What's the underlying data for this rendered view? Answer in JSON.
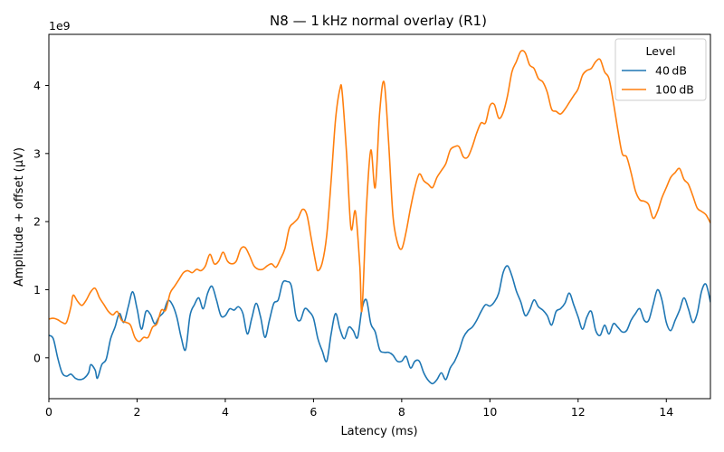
{
  "chart_data": {
    "type": "line",
    "title": "N8 — 1 kHz normal overlay (R1)",
    "xlabel": "Latency (ms)",
    "ylabel": "Amplitude + offset (µV)",
    "y_multiplier_label": "1e9",
    "xlim": [
      0,
      15
    ],
    "ylim": [
      -0.6,
      4.75
    ],
    "x_ticks": [
      0,
      2,
      4,
      6,
      8,
      10,
      12,
      14
    ],
    "x_tick_labels": [
      "0",
      "2",
      "4",
      "6",
      "8",
      "10",
      "12",
      "14"
    ],
    "y_ticks": [
      0,
      1,
      2,
      3,
      4
    ],
    "y_tick_labels": [
      "0",
      "1",
      "2",
      "3",
      "4"
    ],
    "grid": false,
    "legend": {
      "title": "Level",
      "position": "top-right"
    },
    "series": [
      {
        "name": "40 dB",
        "color": "#1f77b4",
        "points": [
          [
            0.0,
            0.33
          ],
          [
            0.1,
            0.28
          ],
          [
            0.2,
            0.0
          ],
          [
            0.3,
            -0.22
          ],
          [
            0.4,
            -0.27
          ],
          [
            0.5,
            -0.24
          ],
          [
            0.6,
            -0.3
          ],
          [
            0.7,
            -0.32
          ],
          [
            0.8,
            -0.3
          ],
          [
            0.9,
            -0.22
          ],
          [
            0.95,
            -0.1
          ],
          [
            1.05,
            -0.18
          ],
          [
            1.1,
            -0.3
          ],
          [
            1.2,
            -0.1
          ],
          [
            1.3,
            -0.02
          ],
          [
            1.4,
            0.28
          ],
          [
            1.5,
            0.45
          ],
          [
            1.6,
            0.65
          ],
          [
            1.7,
            0.52
          ],
          [
            1.8,
            0.75
          ],
          [
            1.9,
            0.97
          ],
          [
            2.0,
            0.72
          ],
          [
            2.1,
            0.42
          ],
          [
            2.2,
            0.68
          ],
          [
            2.3,
            0.64
          ],
          [
            2.4,
            0.5
          ],
          [
            2.5,
            0.6
          ],
          [
            2.6,
            0.67
          ],
          [
            2.7,
            0.84
          ],
          [
            2.8,
            0.78
          ],
          [
            2.9,
            0.6
          ],
          [
            3.0,
            0.3
          ],
          [
            3.1,
            0.12
          ],
          [
            3.2,
            0.62
          ],
          [
            3.3,
            0.78
          ],
          [
            3.4,
            0.88
          ],
          [
            3.5,
            0.72
          ],
          [
            3.6,
            0.95
          ],
          [
            3.7,
            1.05
          ],
          [
            3.8,
            0.85
          ],
          [
            3.9,
            0.62
          ],
          [
            4.0,
            0.62
          ],
          [
            4.1,
            0.72
          ],
          [
            4.2,
            0.7
          ],
          [
            4.3,
            0.75
          ],
          [
            4.4,
            0.65
          ],
          [
            4.5,
            0.35
          ],
          [
            4.6,
            0.58
          ],
          [
            4.7,
            0.8
          ],
          [
            4.8,
            0.6
          ],
          [
            4.9,
            0.3
          ],
          [
            5.0,
            0.55
          ],
          [
            5.1,
            0.8
          ],
          [
            5.2,
            0.85
          ],
          [
            5.3,
            1.1
          ],
          [
            5.4,
            1.12
          ],
          [
            5.5,
            1.05
          ],
          [
            5.6,
            0.62
          ],
          [
            5.7,
            0.55
          ],
          [
            5.8,
            0.72
          ],
          [
            5.9,
            0.68
          ],
          [
            6.0,
            0.58
          ],
          [
            6.1,
            0.28
          ],
          [
            6.2,
            0.1
          ],
          [
            6.3,
            -0.05
          ],
          [
            6.4,
            0.35
          ],
          [
            6.5,
            0.65
          ],
          [
            6.6,
            0.42
          ],
          [
            6.7,
            0.28
          ],
          [
            6.8,
            0.45
          ],
          [
            6.9,
            0.4
          ],
          [
            7.0,
            0.3
          ],
          [
            7.1,
            0.72
          ],
          [
            7.2,
            0.85
          ],
          [
            7.3,
            0.5
          ],
          [
            7.4,
            0.38
          ],
          [
            7.5,
            0.12
          ],
          [
            7.6,
            0.08
          ],
          [
            7.7,
            0.08
          ],
          [
            7.8,
            0.04
          ],
          [
            7.9,
            -0.05
          ],
          [
            8.0,
            -0.05
          ],
          [
            8.1,
            0.02
          ],
          [
            8.2,
            -0.15
          ],
          [
            8.3,
            -0.05
          ],
          [
            8.4,
            -0.05
          ],
          [
            8.5,
            -0.22
          ],
          [
            8.6,
            -0.33
          ],
          [
            8.7,
            -0.38
          ],
          [
            8.8,
            -0.32
          ],
          [
            8.9,
            -0.22
          ],
          [
            9.0,
            -0.32
          ],
          [
            9.1,
            -0.15
          ],
          [
            9.2,
            -0.05
          ],
          [
            9.3,
            0.1
          ],
          [
            9.4,
            0.3
          ],
          [
            9.5,
            0.4
          ],
          [
            9.6,
            0.45
          ],
          [
            9.7,
            0.55
          ],
          [
            9.8,
            0.68
          ],
          [
            9.9,
            0.78
          ],
          [
            10.0,
            0.76
          ],
          [
            10.1,
            0.82
          ],
          [
            10.2,
            0.95
          ],
          [
            10.3,
            1.25
          ],
          [
            10.4,
            1.35
          ],
          [
            10.5,
            1.2
          ],
          [
            10.6,
            0.98
          ],
          [
            10.7,
            0.82
          ],
          [
            10.8,
            0.62
          ],
          [
            10.9,
            0.7
          ],
          [
            11.0,
            0.85
          ],
          [
            11.1,
            0.75
          ],
          [
            11.2,
            0.7
          ],
          [
            11.3,
            0.62
          ],
          [
            11.4,
            0.48
          ],
          [
            11.5,
            0.68
          ],
          [
            11.6,
            0.72
          ],
          [
            11.7,
            0.8
          ],
          [
            11.8,
            0.95
          ],
          [
            11.9,
            0.78
          ],
          [
            12.0,
            0.6
          ],
          [
            12.1,
            0.42
          ],
          [
            12.2,
            0.6
          ],
          [
            12.3,
            0.68
          ],
          [
            12.4,
            0.4
          ],
          [
            12.5,
            0.33
          ],
          [
            12.6,
            0.48
          ],
          [
            12.7,
            0.35
          ],
          [
            12.8,
            0.5
          ],
          [
            12.9,
            0.45
          ],
          [
            13.0,
            0.38
          ],
          [
            13.1,
            0.4
          ],
          [
            13.2,
            0.55
          ],
          [
            13.3,
            0.65
          ],
          [
            13.4,
            0.72
          ],
          [
            13.5,
            0.55
          ],
          [
            13.6,
            0.55
          ],
          [
            13.7,
            0.78
          ],
          [
            13.8,
            1.0
          ],
          [
            13.9,
            0.85
          ],
          [
            14.0,
            0.52
          ],
          [
            14.1,
            0.4
          ],
          [
            14.2,
            0.55
          ],
          [
            14.3,
            0.7
          ],
          [
            14.4,
            0.88
          ],
          [
            14.5,
            0.72
          ],
          [
            14.6,
            0.52
          ],
          [
            14.7,
            0.65
          ],
          [
            14.8,
            0.98
          ],
          [
            14.9,
            1.08
          ],
          [
            15.0,
            0.82
          ]
        ]
      },
      {
        "name": "100 dB",
        "color": "#ff7f0e",
        "points": [
          [
            0.0,
            0.57
          ],
          [
            0.1,
            0.58
          ],
          [
            0.2,
            0.56
          ],
          [
            0.3,
            0.52
          ],
          [
            0.4,
            0.52
          ],
          [
            0.5,
            0.75
          ],
          [
            0.55,
            0.92
          ],
          [
            0.65,
            0.83
          ],
          [
            0.75,
            0.77
          ],
          [
            0.85,
            0.85
          ],
          [
            0.95,
            0.97
          ],
          [
            1.05,
            1.02
          ],
          [
            1.15,
            0.88
          ],
          [
            1.25,
            0.78
          ],
          [
            1.35,
            0.68
          ],
          [
            1.45,
            0.63
          ],
          [
            1.55,
            0.68
          ],
          [
            1.65,
            0.55
          ],
          [
            1.75,
            0.52
          ],
          [
            1.85,
            0.48
          ],
          [
            1.95,
            0.3
          ],
          [
            2.05,
            0.24
          ],
          [
            2.15,
            0.3
          ],
          [
            2.25,
            0.3
          ],
          [
            2.35,
            0.45
          ],
          [
            2.45,
            0.5
          ],
          [
            2.55,
            0.7
          ],
          [
            2.65,
            0.7
          ],
          [
            2.75,
            0.95
          ],
          [
            2.85,
            1.05
          ],
          [
            2.95,
            1.15
          ],
          [
            3.05,
            1.25
          ],
          [
            3.15,
            1.28
          ],
          [
            3.25,
            1.25
          ],
          [
            3.35,
            1.3
          ],
          [
            3.45,
            1.28
          ],
          [
            3.55,
            1.35
          ],
          [
            3.65,
            1.52
          ],
          [
            3.75,
            1.38
          ],
          [
            3.85,
            1.42
          ],
          [
            3.95,
            1.55
          ],
          [
            4.05,
            1.42
          ],
          [
            4.15,
            1.38
          ],
          [
            4.25,
            1.42
          ],
          [
            4.35,
            1.6
          ],
          [
            4.45,
            1.62
          ],
          [
            4.55,
            1.5
          ],
          [
            4.65,
            1.35
          ],
          [
            4.75,
            1.3
          ],
          [
            4.85,
            1.3
          ],
          [
            4.95,
            1.35
          ],
          [
            5.05,
            1.38
          ],
          [
            5.15,
            1.33
          ],
          [
            5.25,
            1.45
          ],
          [
            5.35,
            1.6
          ],
          [
            5.45,
            1.9
          ],
          [
            5.55,
            1.98
          ],
          [
            5.65,
            2.05
          ],
          [
            5.75,
            2.18
          ],
          [
            5.85,
            2.1
          ],
          [
            5.95,
            1.75
          ],
          [
            6.05,
            1.4
          ],
          [
            6.1,
            1.28
          ],
          [
            6.2,
            1.4
          ],
          [
            6.3,
            1.8
          ],
          [
            6.4,
            2.6
          ],
          [
            6.5,
            3.5
          ],
          [
            6.6,
            3.95
          ],
          [
            6.65,
            3.9
          ],
          [
            6.75,
            3.0
          ],
          [
            6.85,
            1.9
          ],
          [
            6.95,
            2.15
          ],
          [
            7.05,
            1.35
          ],
          [
            7.1,
            0.7
          ],
          [
            7.2,
            2.2
          ],
          [
            7.3,
            3.05
          ],
          [
            7.4,
            2.5
          ],
          [
            7.5,
            3.6
          ],
          [
            7.6,
            4.05
          ],
          [
            7.7,
            3.2
          ],
          [
            7.8,
            2.1
          ],
          [
            7.9,
            1.7
          ],
          [
            8.0,
            1.6
          ],
          [
            8.1,
            1.85
          ],
          [
            8.2,
            2.2
          ],
          [
            8.3,
            2.5
          ],
          [
            8.4,
            2.7
          ],
          [
            8.5,
            2.6
          ],
          [
            8.6,
            2.55
          ],
          [
            8.7,
            2.5
          ],
          [
            8.8,
            2.65
          ],
          [
            8.9,
            2.75
          ],
          [
            9.0,
            2.85
          ],
          [
            9.1,
            3.05
          ],
          [
            9.2,
            3.1
          ],
          [
            9.3,
            3.1
          ],
          [
            9.4,
            2.95
          ],
          [
            9.5,
            2.95
          ],
          [
            9.6,
            3.1
          ],
          [
            9.7,
            3.3
          ],
          [
            9.8,
            3.45
          ],
          [
            9.9,
            3.45
          ],
          [
            10.0,
            3.7
          ],
          [
            10.1,
            3.72
          ],
          [
            10.2,
            3.52
          ],
          [
            10.3,
            3.6
          ],
          [
            10.4,
            3.85
          ],
          [
            10.5,
            4.2
          ],
          [
            10.6,
            4.35
          ],
          [
            10.7,
            4.5
          ],
          [
            10.8,
            4.48
          ],
          [
            10.9,
            4.3
          ],
          [
            11.0,
            4.25
          ],
          [
            11.1,
            4.1
          ],
          [
            11.2,
            4.05
          ],
          [
            11.3,
            3.9
          ],
          [
            11.4,
            3.65
          ],
          [
            11.5,
            3.62
          ],
          [
            11.6,
            3.58
          ],
          [
            11.7,
            3.65
          ],
          [
            11.8,
            3.75
          ],
          [
            11.9,
            3.85
          ],
          [
            12.0,
            3.95
          ],
          [
            12.1,
            4.15
          ],
          [
            12.2,
            4.22
          ],
          [
            12.3,
            4.25
          ],
          [
            12.4,
            4.35
          ],
          [
            12.5,
            4.38
          ],
          [
            12.6,
            4.2
          ],
          [
            12.7,
            4.1
          ],
          [
            12.8,
            3.75
          ],
          [
            12.9,
            3.35
          ],
          [
            13.0,
            3.0
          ],
          [
            13.1,
            2.95
          ],
          [
            13.2,
            2.72
          ],
          [
            13.3,
            2.45
          ],
          [
            13.4,
            2.32
          ],
          [
            13.5,
            2.3
          ],
          [
            13.6,
            2.25
          ],
          [
            13.7,
            2.05
          ],
          [
            13.8,
            2.15
          ],
          [
            13.9,
            2.35
          ],
          [
            14.0,
            2.5
          ],
          [
            14.1,
            2.65
          ],
          [
            14.2,
            2.72
          ],
          [
            14.3,
            2.78
          ],
          [
            14.4,
            2.62
          ],
          [
            14.5,
            2.55
          ],
          [
            14.6,
            2.38
          ],
          [
            14.7,
            2.2
          ],
          [
            14.8,
            2.15
          ],
          [
            14.9,
            2.1
          ],
          [
            15.0,
            1.98
          ]
        ]
      }
    ]
  }
}
